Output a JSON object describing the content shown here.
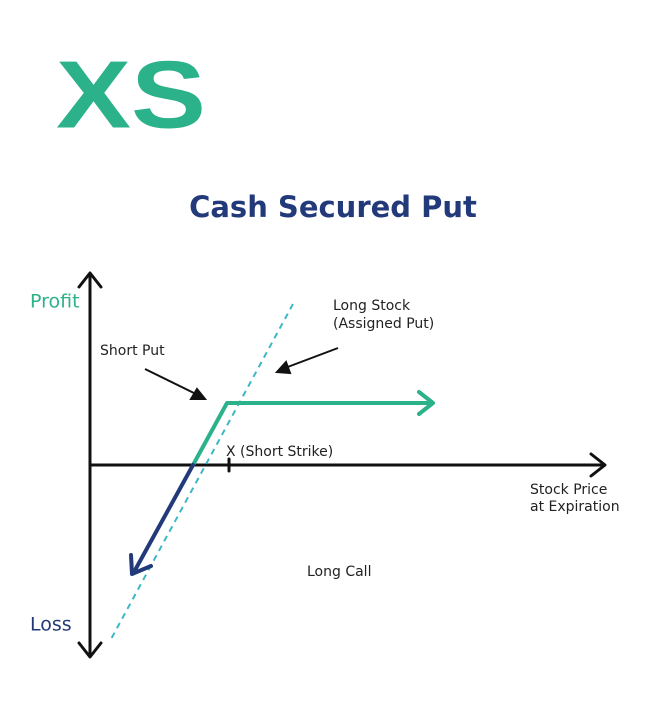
{
  "logo": "XS",
  "title": "Cash Secured Put",
  "axes": {
    "y_top": "Profit",
    "y_bottom": "Loss",
    "x": [
      "Stock Price",
      "at Expiration"
    ]
  },
  "annotations": {
    "short_put": "Short Put",
    "long_stock": [
      "Long Stock",
      "(Assigned Put)"
    ],
    "strike": "X (Short Strike)",
    "long_call": "Long Call"
  }
}
